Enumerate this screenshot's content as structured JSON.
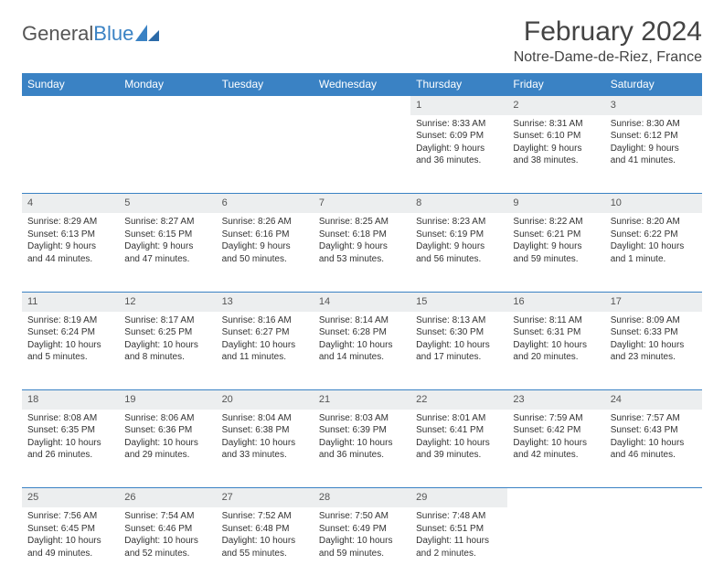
{
  "logo": {
    "text_gray": "General",
    "text_blue": "Blue",
    "glyph_color": "#3a82c4"
  },
  "title": "February 2024",
  "location": "Notre-Dame-de-Riez, France",
  "colors": {
    "header_bg": "#3a82c4",
    "header_text": "#ffffff",
    "daynum_bg": "#eceeef",
    "border": "#3a82c4",
    "body_text": "#333333"
  },
  "day_headers": [
    "Sunday",
    "Monday",
    "Tuesday",
    "Wednesday",
    "Thursday",
    "Friday",
    "Saturday"
  ],
  "weeks": [
    [
      null,
      null,
      null,
      null,
      {
        "n": "1",
        "sr": "Sunrise: 8:33 AM",
        "ss": "Sunset: 6:09 PM",
        "d1": "Daylight: 9 hours",
        "d2": "and 36 minutes."
      },
      {
        "n": "2",
        "sr": "Sunrise: 8:31 AM",
        "ss": "Sunset: 6:10 PM",
        "d1": "Daylight: 9 hours",
        "d2": "and 38 minutes."
      },
      {
        "n": "3",
        "sr": "Sunrise: 8:30 AM",
        "ss": "Sunset: 6:12 PM",
        "d1": "Daylight: 9 hours",
        "d2": "and 41 minutes."
      }
    ],
    [
      {
        "n": "4",
        "sr": "Sunrise: 8:29 AM",
        "ss": "Sunset: 6:13 PM",
        "d1": "Daylight: 9 hours",
        "d2": "and 44 minutes."
      },
      {
        "n": "5",
        "sr": "Sunrise: 8:27 AM",
        "ss": "Sunset: 6:15 PM",
        "d1": "Daylight: 9 hours",
        "d2": "and 47 minutes."
      },
      {
        "n": "6",
        "sr": "Sunrise: 8:26 AM",
        "ss": "Sunset: 6:16 PM",
        "d1": "Daylight: 9 hours",
        "d2": "and 50 minutes."
      },
      {
        "n": "7",
        "sr": "Sunrise: 8:25 AM",
        "ss": "Sunset: 6:18 PM",
        "d1": "Daylight: 9 hours",
        "d2": "and 53 minutes."
      },
      {
        "n": "8",
        "sr": "Sunrise: 8:23 AM",
        "ss": "Sunset: 6:19 PM",
        "d1": "Daylight: 9 hours",
        "d2": "and 56 minutes."
      },
      {
        "n": "9",
        "sr": "Sunrise: 8:22 AM",
        "ss": "Sunset: 6:21 PM",
        "d1": "Daylight: 9 hours",
        "d2": "and 59 minutes."
      },
      {
        "n": "10",
        "sr": "Sunrise: 8:20 AM",
        "ss": "Sunset: 6:22 PM",
        "d1": "Daylight: 10 hours",
        "d2": "and 1 minute."
      }
    ],
    [
      {
        "n": "11",
        "sr": "Sunrise: 8:19 AM",
        "ss": "Sunset: 6:24 PM",
        "d1": "Daylight: 10 hours",
        "d2": "and 5 minutes."
      },
      {
        "n": "12",
        "sr": "Sunrise: 8:17 AM",
        "ss": "Sunset: 6:25 PM",
        "d1": "Daylight: 10 hours",
        "d2": "and 8 minutes."
      },
      {
        "n": "13",
        "sr": "Sunrise: 8:16 AM",
        "ss": "Sunset: 6:27 PM",
        "d1": "Daylight: 10 hours",
        "d2": "and 11 minutes."
      },
      {
        "n": "14",
        "sr": "Sunrise: 8:14 AM",
        "ss": "Sunset: 6:28 PM",
        "d1": "Daylight: 10 hours",
        "d2": "and 14 minutes."
      },
      {
        "n": "15",
        "sr": "Sunrise: 8:13 AM",
        "ss": "Sunset: 6:30 PM",
        "d1": "Daylight: 10 hours",
        "d2": "and 17 minutes."
      },
      {
        "n": "16",
        "sr": "Sunrise: 8:11 AM",
        "ss": "Sunset: 6:31 PM",
        "d1": "Daylight: 10 hours",
        "d2": "and 20 minutes."
      },
      {
        "n": "17",
        "sr": "Sunrise: 8:09 AM",
        "ss": "Sunset: 6:33 PM",
        "d1": "Daylight: 10 hours",
        "d2": "and 23 minutes."
      }
    ],
    [
      {
        "n": "18",
        "sr": "Sunrise: 8:08 AM",
        "ss": "Sunset: 6:35 PM",
        "d1": "Daylight: 10 hours",
        "d2": "and 26 minutes."
      },
      {
        "n": "19",
        "sr": "Sunrise: 8:06 AM",
        "ss": "Sunset: 6:36 PM",
        "d1": "Daylight: 10 hours",
        "d2": "and 29 minutes."
      },
      {
        "n": "20",
        "sr": "Sunrise: 8:04 AM",
        "ss": "Sunset: 6:38 PM",
        "d1": "Daylight: 10 hours",
        "d2": "and 33 minutes."
      },
      {
        "n": "21",
        "sr": "Sunrise: 8:03 AM",
        "ss": "Sunset: 6:39 PM",
        "d1": "Daylight: 10 hours",
        "d2": "and 36 minutes."
      },
      {
        "n": "22",
        "sr": "Sunrise: 8:01 AM",
        "ss": "Sunset: 6:41 PM",
        "d1": "Daylight: 10 hours",
        "d2": "and 39 minutes."
      },
      {
        "n": "23",
        "sr": "Sunrise: 7:59 AM",
        "ss": "Sunset: 6:42 PM",
        "d1": "Daylight: 10 hours",
        "d2": "and 42 minutes."
      },
      {
        "n": "24",
        "sr": "Sunrise: 7:57 AM",
        "ss": "Sunset: 6:43 PM",
        "d1": "Daylight: 10 hours",
        "d2": "and 46 minutes."
      }
    ],
    [
      {
        "n": "25",
        "sr": "Sunrise: 7:56 AM",
        "ss": "Sunset: 6:45 PM",
        "d1": "Daylight: 10 hours",
        "d2": "and 49 minutes."
      },
      {
        "n": "26",
        "sr": "Sunrise: 7:54 AM",
        "ss": "Sunset: 6:46 PM",
        "d1": "Daylight: 10 hours",
        "d2": "and 52 minutes."
      },
      {
        "n": "27",
        "sr": "Sunrise: 7:52 AM",
        "ss": "Sunset: 6:48 PM",
        "d1": "Daylight: 10 hours",
        "d2": "and 55 minutes."
      },
      {
        "n": "28",
        "sr": "Sunrise: 7:50 AM",
        "ss": "Sunset: 6:49 PM",
        "d1": "Daylight: 10 hours",
        "d2": "and 59 minutes."
      },
      {
        "n": "29",
        "sr": "Sunrise: 7:48 AM",
        "ss": "Sunset: 6:51 PM",
        "d1": "Daylight: 11 hours",
        "d2": "and 2 minutes."
      },
      null,
      null
    ]
  ]
}
